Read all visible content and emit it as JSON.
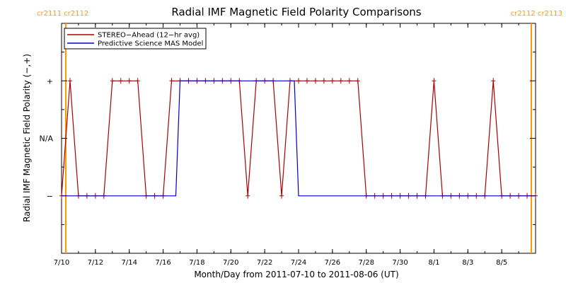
{
  "chart_data": {
    "type": "line",
    "title": "Radial IMF Magnetic Field Polarity Comparisons",
    "xlabel": "Month/Day from 2011-07-10 to 2011-08-06 (UT)",
    "ylabel": "Radial IMF Magnetic Field Polarity (−,+)",
    "xlim": [
      "2011-07-10",
      "2011-08-06"
    ],
    "x_ticks": [
      "7/10",
      "7/12",
      "7/14",
      "7/16",
      "7/18",
      "7/20",
      "7/22",
      "7/24",
      "7/26",
      "7/28",
      "7/30",
      "8/1",
      "8/3",
      "8/5"
    ],
    "y_ticks": [
      "−",
      "N/A",
      "+"
    ],
    "ylim": [
      -2,
      2
    ],
    "grid": false,
    "legend_position": "top-left",
    "carrington_markers": [
      {
        "label": "cr2111 cr2112",
        "date": "2011-07-10 06:00",
        "color": "#ff9900"
      },
      {
        "label": "cr2112 cr2113",
        "date": "2011-08-06 18:00",
        "color": "#ff9900"
      }
    ],
    "series": [
      {
        "name": "STEREO−Ahead (12−hr avg)",
        "color": "#aa0000",
        "markers": true,
        "points": [
          [
            "2011-07-10 00:00",
            -1
          ],
          [
            "2011-07-10 12:00",
            1
          ],
          [
            "2011-07-11 00:00",
            -1
          ],
          [
            "2011-07-11 12:00",
            -1
          ],
          [
            "2011-07-12 00:00",
            -1
          ],
          [
            "2011-07-12 12:00",
            -1
          ],
          [
            "2011-07-13 00:00",
            1
          ],
          [
            "2011-07-13 12:00",
            1
          ],
          [
            "2011-07-14 00:00",
            1
          ],
          [
            "2011-07-14 12:00",
            1
          ],
          [
            "2011-07-15 00:00",
            -1
          ],
          [
            "2011-07-15 12:00",
            -1
          ],
          [
            "2011-07-16 00:00",
            -1
          ],
          [
            "2011-07-16 12:00",
            1
          ],
          [
            "2011-07-17 00:00",
            1
          ],
          [
            "2011-07-17 12:00",
            1
          ],
          [
            "2011-07-18 00:00",
            1
          ],
          [
            "2011-07-18 12:00",
            1
          ],
          [
            "2011-07-19 00:00",
            1
          ],
          [
            "2011-07-19 12:00",
            1
          ],
          [
            "2011-07-20 00:00",
            1
          ],
          [
            "2011-07-20 12:00",
            1
          ],
          [
            "2011-07-21 00:00",
            -1
          ],
          [
            "2011-07-21 12:00",
            1
          ],
          [
            "2011-07-22 00:00",
            1
          ],
          [
            "2011-07-22 12:00",
            1
          ],
          [
            "2011-07-23 00:00",
            -1
          ],
          [
            "2011-07-23 12:00",
            1
          ],
          [
            "2011-07-24 00:00",
            1
          ],
          [
            "2011-07-24 12:00",
            1
          ],
          [
            "2011-07-25 00:00",
            1
          ],
          [
            "2011-07-25 12:00",
            1
          ],
          [
            "2011-07-26 00:00",
            1
          ],
          [
            "2011-07-26 12:00",
            1
          ],
          [
            "2011-07-27 00:00",
            1
          ],
          [
            "2011-07-27 12:00",
            1
          ],
          [
            "2011-07-28 00:00",
            -1
          ],
          [
            "2011-07-28 12:00",
            -1
          ],
          [
            "2011-07-29 00:00",
            -1
          ],
          [
            "2011-07-29 12:00",
            -1
          ],
          [
            "2011-07-30 00:00",
            -1
          ],
          [
            "2011-07-30 12:00",
            -1
          ],
          [
            "2011-07-31 00:00",
            -1
          ],
          [
            "2011-07-31 12:00",
            -1
          ],
          [
            "2011-08-01 00:00",
            1
          ],
          [
            "2011-08-01 12:00",
            -1
          ],
          [
            "2011-08-02 00:00",
            -1
          ],
          [
            "2011-08-02 12:00",
            -1
          ],
          [
            "2011-08-03 00:00",
            -1
          ],
          [
            "2011-08-03 12:00",
            -1
          ],
          [
            "2011-08-04 00:00",
            -1
          ],
          [
            "2011-08-04 12:00",
            1
          ],
          [
            "2011-08-05 00:00",
            -1
          ],
          [
            "2011-08-05 12:00",
            -1
          ],
          [
            "2011-08-06 00:00",
            -1
          ],
          [
            "2011-08-06 12:00",
            -1
          ],
          [
            "2011-08-07 00:00",
            -1
          ]
        ]
      },
      {
        "name": "Predictive Science MAS Model",
        "color": "#0000cc",
        "markers": false,
        "points": [
          [
            "2011-07-10 00:00",
            -1
          ],
          [
            "2011-07-16 18:00",
            -1
          ],
          [
            "2011-07-17 00:00",
            1
          ],
          [
            "2011-07-23 18:00",
            1
          ],
          [
            "2011-07-24 00:00",
            -1
          ],
          [
            "2011-08-07 00:00",
            -1
          ]
        ]
      }
    ]
  }
}
